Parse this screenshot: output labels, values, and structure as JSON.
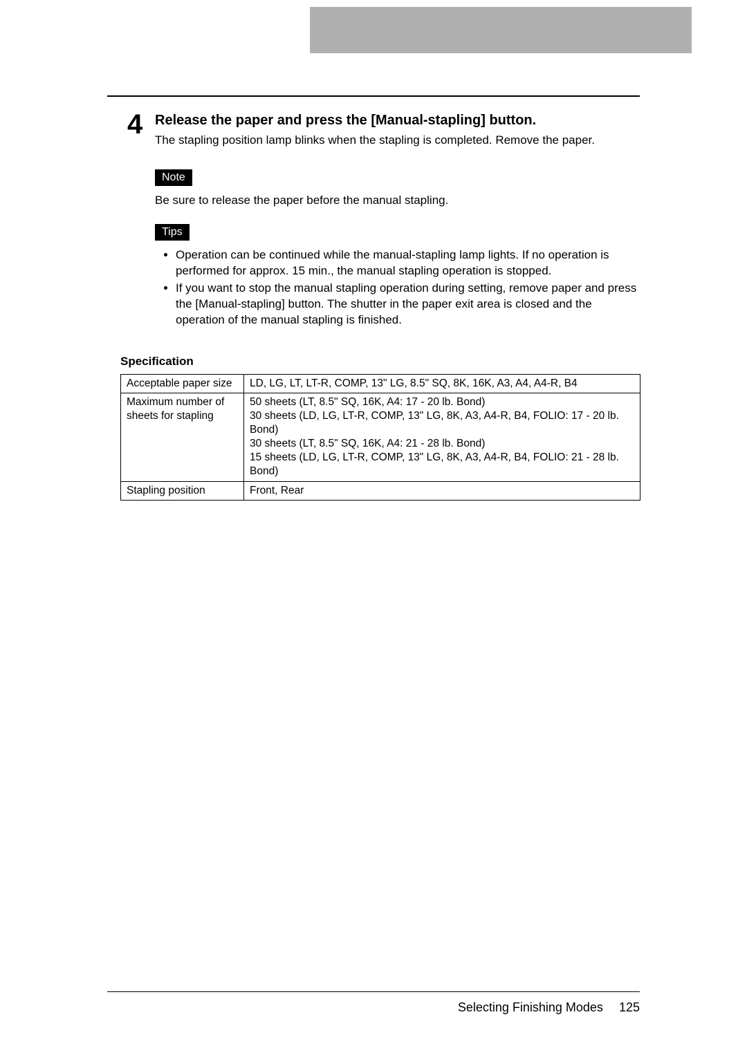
{
  "step": {
    "number": "4",
    "title": "Release the paper and press the [Manual-stapling] button.",
    "description": "The stapling position lamp blinks when the stapling is completed. Remove the paper."
  },
  "note": {
    "badge": "Note",
    "text": "Be sure to release the paper before the manual stapling."
  },
  "tips": {
    "badge": "Tips",
    "items": [
      "Operation can be continued while the manual-stapling lamp lights. If no operation is performed for approx. 15 min., the manual stapling operation is stopped.",
      "If you want to stop the manual stapling operation during setting, remove paper and press the [Manual-stapling] button. The shutter in the paper exit area is closed and the operation of the manual stapling is finished."
    ]
  },
  "spec": {
    "heading": "Specification",
    "rows": [
      {
        "label": "Acceptable paper size",
        "value": "LD, LG, LT, LT-R, COMP, 13\" LG, 8.5\" SQ, 8K, 16K, A3, A4, A4-R, B4"
      },
      {
        "label": "Maximum number of sheets for stapling",
        "value": "50 sheets (LT, 8.5\" SQ, 16K, A4: 17 - 20 lb. Bond)\n30 sheets (LD, LG, LT-R, COMP, 13\" LG, 8K, A3, A4-R, B4, FOLIO: 17 - 20 lb. Bond)\n30 sheets (LT, 8.5\" SQ, 16K, A4: 21 - 28 lb. Bond)\n15 sheets (LD, LG, LT-R, COMP, 13\" LG, 8K, A3, A4-R, B4, FOLIO: 21 - 28 lb. Bond)"
      },
      {
        "label": "Stapling position",
        "value": "Front, Rear"
      }
    ]
  },
  "footer": {
    "section": "Selecting Finishing Modes",
    "page": "125"
  },
  "colors": {
    "header_band": "#b0b0b0",
    "badge_bg": "#000000",
    "badge_fg": "#ffffff",
    "text": "#000000",
    "background": "#ffffff"
  }
}
